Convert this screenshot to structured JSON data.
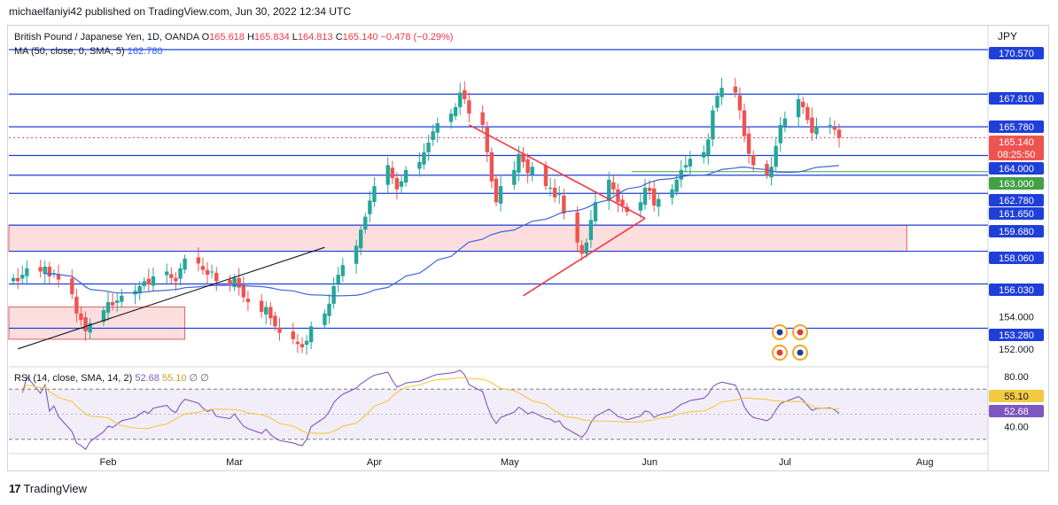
{
  "header": {
    "publisher_line": "michaelfaniyi42 published on TradingView.com, Jun 30, 2022 12:34 UTC"
  },
  "legend": {
    "symbol": "British Pound / Japanese Yen, 1D, OANDA",
    "o_label": "O",
    "o_value": "165.618",
    "h_label": "H",
    "h_value": "165.834",
    "l_label": "L",
    "l_value": "164.813",
    "c_label": "C",
    "c_value": "165.140",
    "change": "−0.478 (−0.29%)",
    "ma_label": "MA (50, close, 0, SMA, 5)",
    "ma_value": "162.780",
    "rsi_label": "RSI (14, close, SMA, 14, 2)",
    "rsi_value": "52.68",
    "rsi_ma_value": "55.10",
    "rsi_extra": "∅ ∅"
  },
  "axis": {
    "currency": "JPY"
  },
  "footer": {
    "brand": "TradingView"
  },
  "colors": {
    "up": "#26a69a",
    "down": "#ef5350",
    "level_line": "#1e3fd9",
    "ma": "#3d63dd",
    "zone_fill": "#fbd3d3",
    "rsi_line": "#7e57c2",
    "rsi_ma": "#f5c842",
    "trendline_red": "#f23645"
  },
  "chart_data": [
    {
      "type": "candlestick",
      "title": "British Pound / Japanese Yen, 1D, OANDA",
      "x_range": [
        "2022-01-10",
        "2022-08-15"
      ],
      "x_tick_labels": [
        "Feb",
        "Mar",
        "Apr",
        "May",
        "Jun",
        "Jul",
        "Aug"
      ],
      "x_ticks": [
        "2022-02-01",
        "2022-03-01",
        "2022-04-01",
        "2022-05-01",
        "2022-06-01",
        "2022-07-01",
        "2022-08-01"
      ],
      "ylim": [
        151.0,
        172.0
      ],
      "y_tick_labels": [
        "154.000",
        "152.000"
      ],
      "y_ticks": [
        154.0,
        152.0
      ],
      "price_series_close": [
        156.4,
        156.2,
        156.6,
        157.0,
        156.8,
        157.1,
        156.5,
        156.7,
        156.3,
        155.4,
        154.2,
        153.8,
        153.1,
        153.6,
        154.4,
        154.9,
        154.7,
        155.0,
        155.3,
        155.6,
        155.9,
        156.2,
        156.0,
        156.5,
        156.8,
        156.4,
        156.2,
        157.0,
        157.6,
        157.3,
        156.9,
        156.6,
        156.8,
        156.2,
        156.0,
        156.4,
        155.8,
        155.2,
        154.9,
        154.3,
        154.6,
        153.9,
        153.4,
        153.0,
        152.6,
        152.3,
        152.1,
        152.5,
        153.4,
        154.2,
        154.8,
        155.9,
        156.6,
        157.2,
        158.4,
        159.4,
        160.2,
        161.2,
        162.1,
        163.4,
        162.6,
        161.9,
        162.4,
        163.1,
        163.6,
        164.2,
        164.8,
        165.5,
        166.0,
        166.6,
        167.0,
        167.9,
        167.5,
        166.6,
        165.9,
        164.2,
        162.4,
        161.1,
        162.1,
        163.1,
        164.1,
        163.6,
        162.9,
        163.3,
        162.1,
        162.0,
        161.4,
        161.6,
        160.4,
        158.6,
        157.9,
        158.6,
        160.0,
        161.1,
        162.5,
        161.9,
        161.1,
        160.9,
        160.5,
        161.1,
        162.0,
        161.8,
        160.9,
        161.3,
        161.9,
        162.5,
        163.1,
        163.4,
        163.8,
        164.2,
        165.0,
        166.8,
        167.7,
        168.2,
        167.9,
        166.8,
        165.2,
        164.1,
        163.4,
        162.8,
        163.3,
        164.6,
        165.9,
        166.3,
        167.5,
        167.0,
        166.2,
        165.4,
        165.8,
        165.9,
        165.6,
        165.1
      ],
      "horizontal_levels": [
        170.57,
        167.81,
        165.78,
        164.0,
        162.78,
        161.65,
        159.68,
        158.06,
        156.03,
        153.28
      ],
      "price_labels": [
        {
          "text": "170.570",
          "bg": "#1e3fd9"
        },
        {
          "text": "167.810",
          "bg": "#1e3fd9"
        },
        {
          "text": "165.780",
          "bg": "#1e3fd9"
        },
        {
          "text": "165.140",
          "bg": "#ef5350",
          "sub": "08:25:50"
        },
        {
          "text": "164.000",
          "bg": "#1e3fd9"
        },
        {
          "text": "163.000",
          "bg": "#43a047"
        },
        {
          "text": "162.780",
          "bg": "#1e3fd9"
        },
        {
          "text": "161.650",
          "bg": "#1e3fd9"
        },
        {
          "text": "159.680",
          "bg": "#1e3fd9"
        },
        {
          "text": "158.060",
          "bg": "#1e3fd9"
        },
        {
          "text": "156.030",
          "bg": "#1e3fd9"
        },
        {
          "text": "153.280",
          "bg": "#1e3fd9"
        }
      ],
      "zones": [
        {
          "from": "2022-01-10",
          "to": "2022-07-28",
          "low": 158.06,
          "high": 159.68
        },
        {
          "from": "2022-01-10",
          "to": "2022-02-18",
          "low": 152.6,
          "high": 154.6
        }
      ],
      "moving_average": {
        "name": "MA (50, close, 0, SMA, 5)",
        "last": 162.78
      }
    },
    {
      "type": "line",
      "title": "RSI (14, close, SMA, 14, 2)",
      "ylim": [
        20,
        85
      ],
      "y_tick_labels": [
        "80.00",
        "40.00"
      ],
      "y_ticks": [
        80,
        40
      ],
      "bands": [
        70,
        30
      ],
      "series": [
        {
          "name": "RSI",
          "last": 52.68
        },
        {
          "name": "RSI MA",
          "last": 55.1
        }
      ]
    }
  ]
}
